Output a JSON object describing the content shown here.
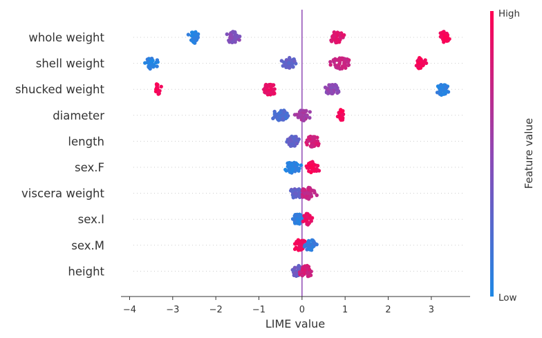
{
  "chart_data": {
    "type": "scatter",
    "subtype": "beeswarm",
    "xlabel": "LIME value",
    "xlim": [
      -4.2,
      3.9
    ],
    "xticks": [
      -4,
      -3,
      -2,
      -1,
      0,
      1,
      2,
      3
    ],
    "xtick_labels": [
      "−4",
      "−3",
      "−2",
      "−1",
      "0",
      "1",
      "2",
      "3"
    ],
    "zero_line": 0,
    "colorbar": {
      "title": "Feature value",
      "high_label": "High",
      "low_label": "Low",
      "low_color": "#1e88e5",
      "high_color": "#ff0052"
    },
    "features": [
      {
        "name": "whole weight",
        "clusters": [
          {
            "center": -2.5,
            "spread": 0.18,
            "count": 40,
            "value": 0.05
          },
          {
            "center": -1.6,
            "spread": 0.22,
            "count": 45,
            "value": 0.45
          },
          {
            "center": 0.8,
            "spread": 0.22,
            "count": 45,
            "value": 0.85
          },
          {
            "center": 3.3,
            "spread": 0.16,
            "count": 35,
            "value": 0.98
          }
        ]
      },
      {
        "name": "shell weight",
        "clusters": [
          {
            "center": -3.5,
            "spread": 0.2,
            "count": 40,
            "value": 0.05
          },
          {
            "center": -0.3,
            "spread": 0.2,
            "count": 40,
            "value": 0.3
          },
          {
            "center": 0.9,
            "spread": 0.28,
            "count": 50,
            "value": 0.75
          },
          {
            "center": 2.75,
            "spread": 0.2,
            "count": 35,
            "value": 0.97
          }
        ]
      },
      {
        "name": "shucked weight",
        "clusters": [
          {
            "center": -3.35,
            "spread": 0.1,
            "count": 20,
            "value": 0.98
          },
          {
            "center": -0.75,
            "spread": 0.22,
            "count": 45,
            "value": 0.9
          },
          {
            "center": 0.7,
            "spread": 0.22,
            "count": 55,
            "value": 0.5
          },
          {
            "center": 3.25,
            "spread": 0.2,
            "count": 45,
            "value": 0.05
          }
        ]
      },
      {
        "name": "diameter",
        "clusters": [
          {
            "center": -0.5,
            "spread": 0.28,
            "count": 45,
            "value": 0.2
          },
          {
            "center": 0.0,
            "spread": 0.22,
            "count": 45,
            "value": 0.6
          },
          {
            "center": 0.9,
            "spread": 0.1,
            "count": 20,
            "value": 0.97
          }
        ]
      },
      {
        "name": "length",
        "clusters": [
          {
            "center": -0.2,
            "spread": 0.24,
            "count": 40,
            "value": 0.3
          },
          {
            "center": 0.25,
            "spread": 0.22,
            "count": 50,
            "value": 0.8
          }
        ]
      },
      {
        "name": "sex.F",
        "clusters": [
          {
            "center": -0.22,
            "spread": 0.24,
            "count": 50,
            "value": 0.05
          },
          {
            "center": 0.25,
            "spread": 0.18,
            "count": 45,
            "value": 0.97
          }
        ]
      },
      {
        "name": "viscera weight",
        "clusters": [
          {
            "center": -0.1,
            "spread": 0.22,
            "count": 45,
            "value": 0.3
          },
          {
            "center": 0.15,
            "spread": 0.22,
            "count": 40,
            "value": 0.75
          }
        ]
      },
      {
        "name": "sex.I",
        "clusters": [
          {
            "center": -0.1,
            "spread": 0.16,
            "count": 55,
            "value": 0.06
          },
          {
            "center": 0.12,
            "spread": 0.14,
            "count": 25,
            "value": 0.9
          }
        ]
      },
      {
        "name": "sex.M",
        "clusters": [
          {
            "center": -0.05,
            "spread": 0.2,
            "count": 45,
            "value": 0.95
          },
          {
            "center": 0.2,
            "spread": 0.18,
            "count": 35,
            "value": 0.1
          }
        ]
      },
      {
        "name": "height",
        "clusters": [
          {
            "center": -0.1,
            "spread": 0.2,
            "count": 40,
            "value": 0.35
          },
          {
            "center": 0.1,
            "spread": 0.2,
            "count": 40,
            "value": 0.8
          }
        ]
      }
    ]
  }
}
